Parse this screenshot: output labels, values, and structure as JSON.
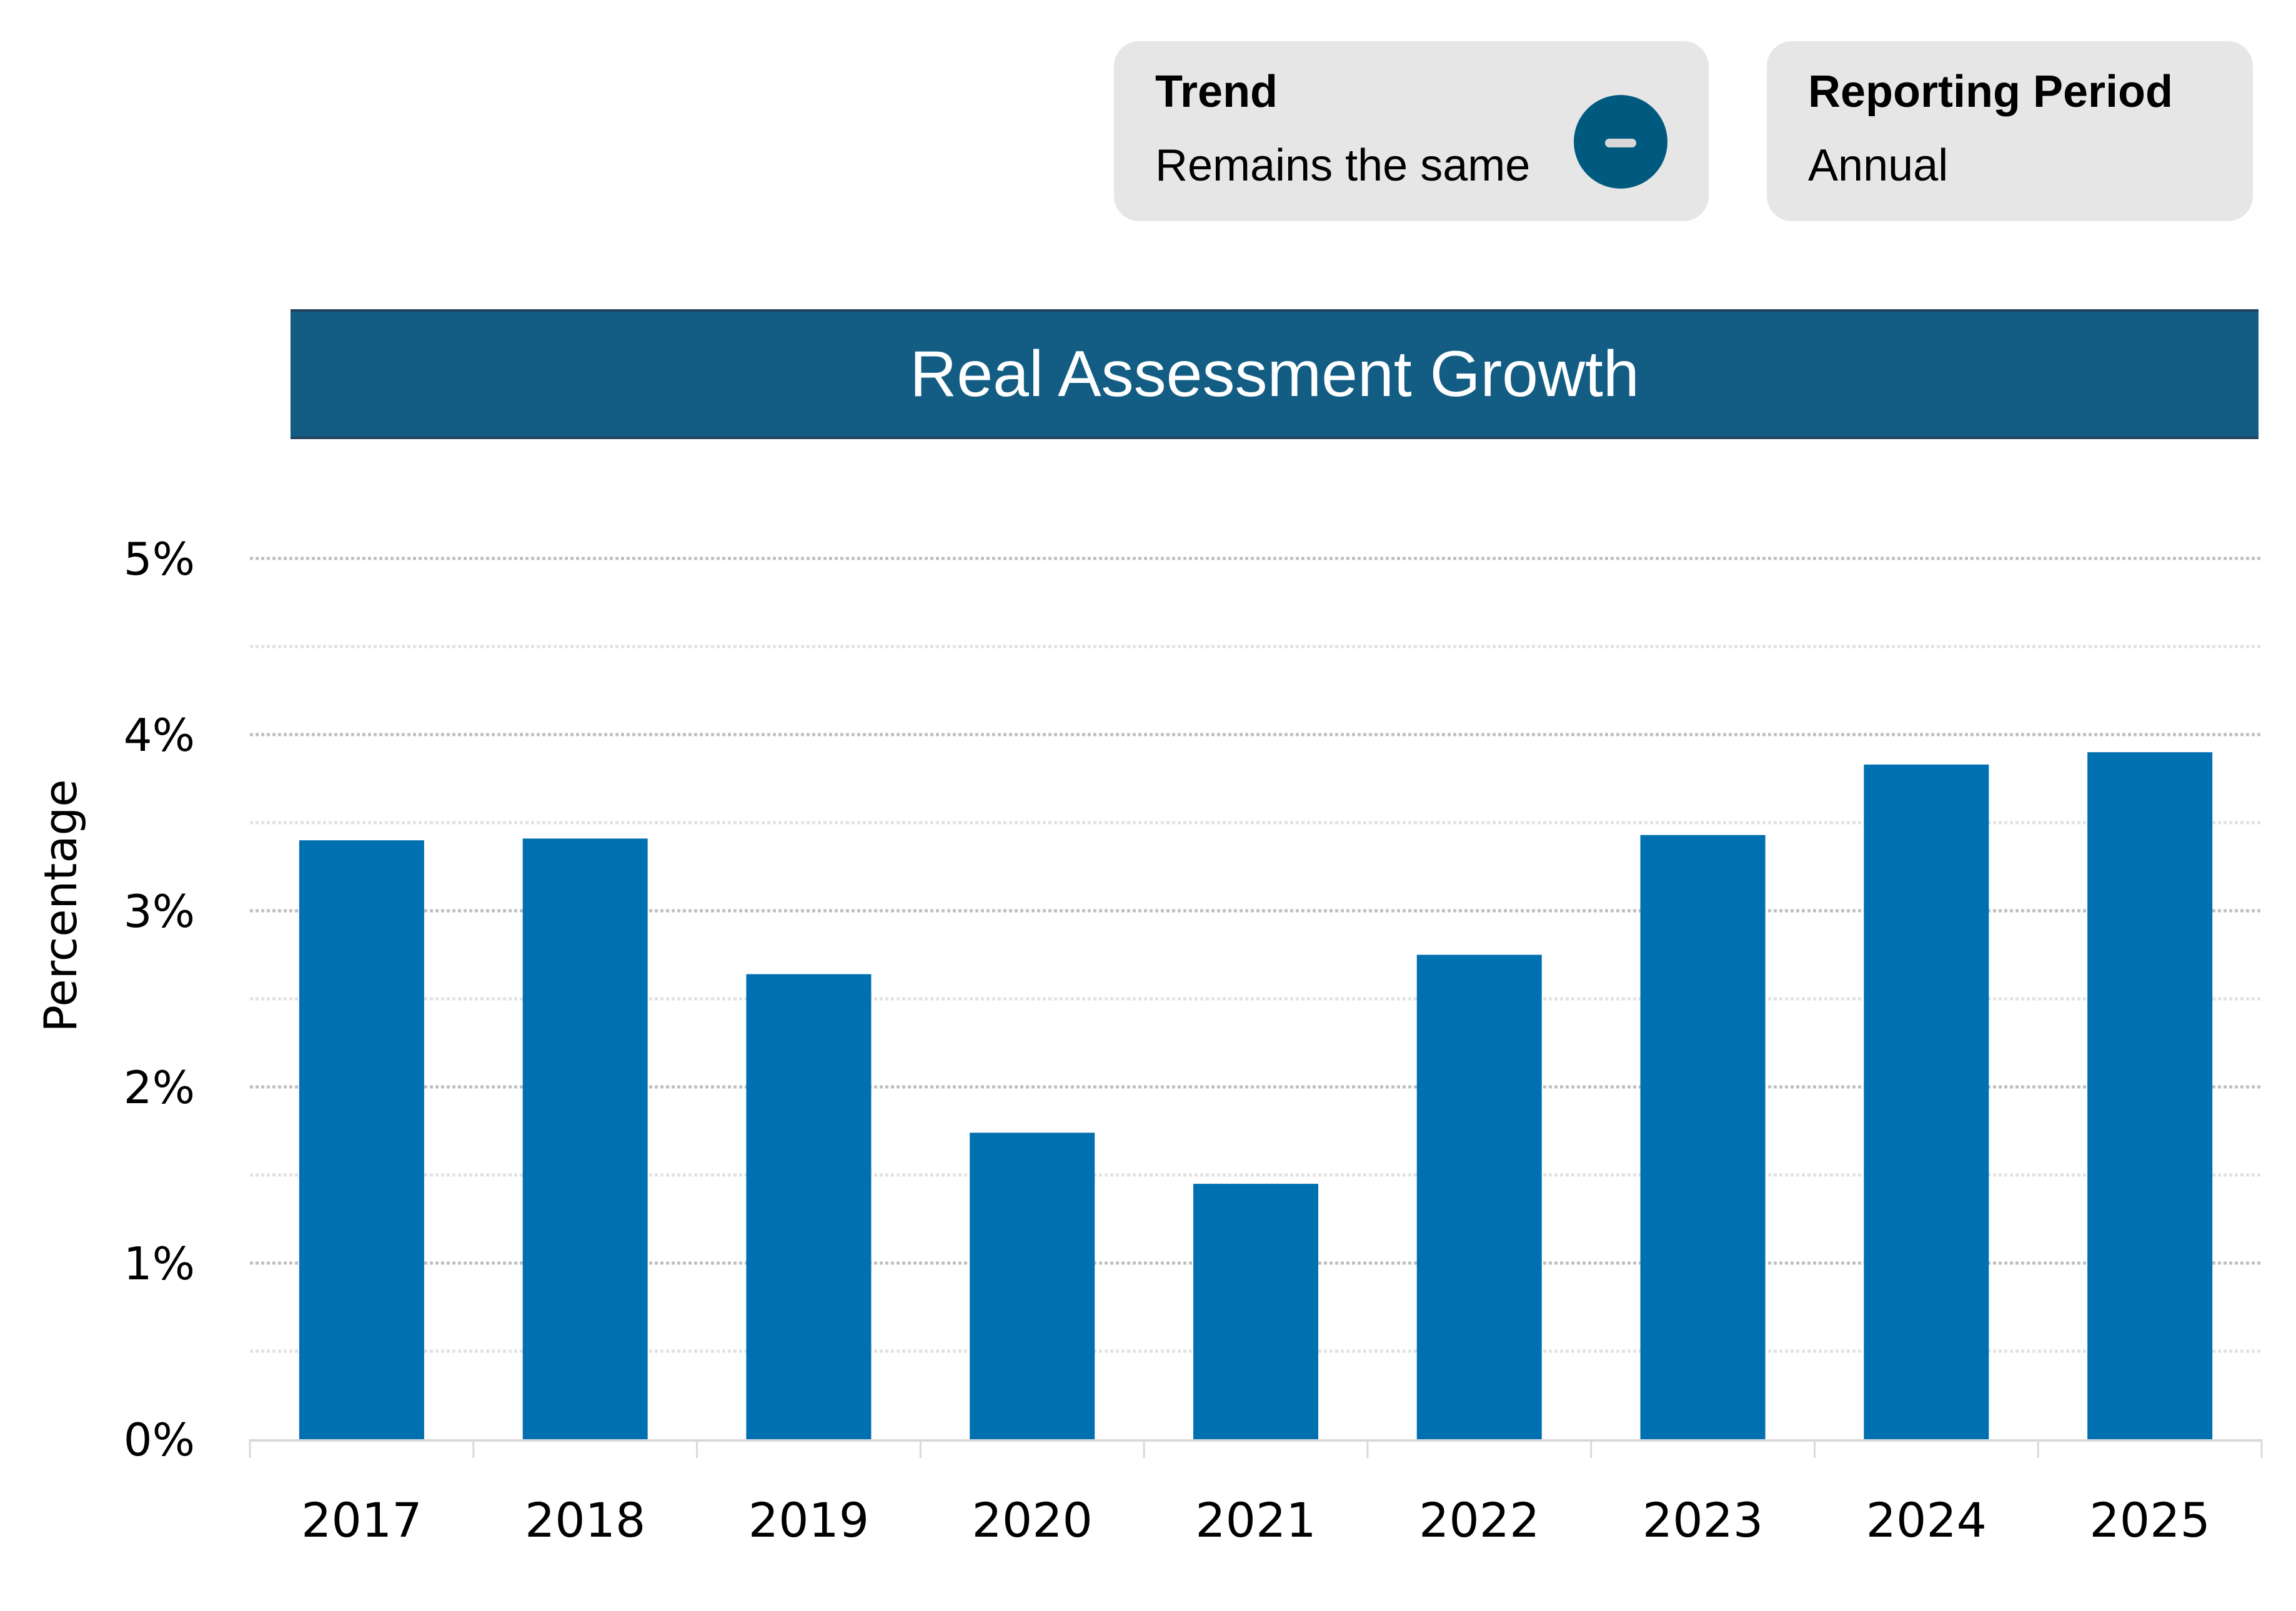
{
  "trend_card": {
    "title": "Trend",
    "value": "Remains the same",
    "icon": "minus-circle-icon"
  },
  "period_card": {
    "title": "Reporting Period",
    "value": "Annual"
  },
  "colors": {
    "bar": "#0070b0",
    "banner": "#135d84",
    "trend_icon": "#005a80",
    "grid": "#bfbfbf",
    "card_bg": "#e6e6e6"
  },
  "chart_data": {
    "type": "bar",
    "title": "Real Assessment Growth",
    "xlabel": "",
    "ylabel": "Percentage",
    "categories": [
      "2017",
      "2018",
      "2019",
      "2020",
      "2021",
      "2022",
      "2023",
      "2024",
      "2025"
    ],
    "values": [
      3.4,
      3.41,
      2.64,
      1.74,
      1.45,
      2.75,
      3.43,
      3.83,
      3.9
    ],
    "unit": "%",
    "ylim": [
      0,
      5
    ],
    "yticks": [
      0,
      1,
      2,
      3,
      4,
      5
    ],
    "ytick_labels": [
      "0%",
      "1%",
      "2%",
      "3%",
      "4%",
      "5%"
    ],
    "minor_gridlines": [
      0.5,
      1.5,
      2.5,
      3.5,
      4.5
    ],
    "grid": true,
    "legend": "none"
  }
}
